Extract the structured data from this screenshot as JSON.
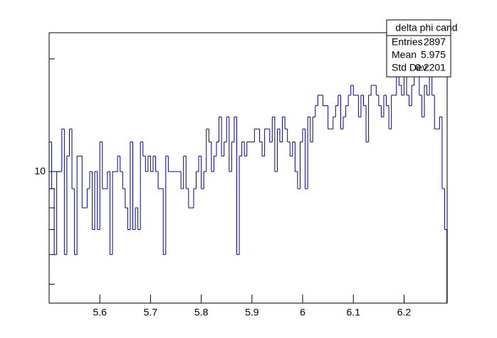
{
  "chart_data": {
    "type": "histogram",
    "bins": [
      5.5,
      5.505,
      5.51,
      5.515,
      5.52,
      5.525,
      5.53,
      5.535,
      5.54,
      5.545,
      5.55,
      5.555,
      5.56,
      5.565,
      5.57,
      5.575,
      5.58,
      5.585,
      5.59,
      5.595,
      5.6,
      5.605,
      5.61,
      5.615,
      5.62,
      5.625,
      5.63,
      5.635,
      5.64,
      5.645,
      5.65,
      5.655,
      5.66,
      5.665,
      5.67,
      5.675,
      5.68,
      5.685,
      5.69,
      5.695,
      5.7,
      5.705,
      5.71,
      5.715,
      5.72,
      5.725,
      5.73,
      5.735,
      5.74,
      5.745,
      5.75,
      5.755,
      5.76,
      5.765,
      5.77,
      5.775,
      5.78,
      5.785,
      5.79,
      5.795,
      5.8,
      5.805,
      5.81,
      5.815,
      5.82,
      5.825,
      5.83,
      5.835,
      5.84,
      5.845,
      5.85,
      5.855,
      5.86,
      5.865,
      5.87,
      5.875,
      5.88,
      5.885,
      5.89,
      5.895,
      5.9,
      5.905,
      5.91,
      5.915,
      5.92,
      5.925,
      5.93,
      5.935,
      5.94,
      5.945,
      5.95,
      5.955,
      5.96,
      5.965,
      5.97,
      5.975,
      5.98,
      5.985,
      5.99,
      5.995,
      6.0,
      6.005,
      6.01,
      6.015,
      6.02,
      6.025,
      6.03,
      6.035,
      6.04,
      6.045,
      6.05,
      6.055,
      6.06,
      6.065,
      6.07,
      6.075,
      6.08,
      6.085,
      6.09,
      6.095,
      6.1,
      6.105,
      6.11,
      6.115,
      6.12,
      6.125,
      6.13,
      6.135,
      6.14,
      6.145,
      6.15,
      6.155,
      6.16,
      6.165,
      6.17,
      6.175,
      6.18,
      6.185,
      6.19,
      6.195,
      6.2,
      6.205,
      6.21,
      6.215,
      6.22,
      6.225,
      6.23,
      6.235,
      6.24,
      6.245,
      6.25,
      6.255,
      6.26,
      6.265,
      6.27,
      6.275,
      6.28,
      6.285
    ],
    "values": [
      12,
      9,
      6,
      10,
      10,
      13,
      6,
      11,
      13,
      9,
      6,
      11,
      11,
      8,
      8,
      9,
      10,
      7,
      10,
      7,
      12,
      9,
      9,
      10,
      6,
      10,
      10,
      11,
      10,
      9,
      8,
      7,
      12,
      7,
      8,
      7,
      12,
      11,
      10,
      11,
      10,
      11,
      10,
      9,
      9,
      6,
      11,
      10,
      10,
      10,
      10,
      10,
      9,
      11,
      9,
      8,
      8,
      9,
      10,
      11,
      9,
      10,
      13,
      12,
      10,
      11,
      12,
      14,
      11,
      12,
      14,
      10,
      12,
      14,
      6,
      11,
      12,
      11,
      12,
      12,
      12,
      13,
      13,
      12,
      11,
      13,
      13,
      12,
      14,
      10,
      13,
      12,
      14,
      13,
      12,
      11,
      12,
      10,
      9,
      12,
      13,
      9,
      14,
      12,
      14,
      15,
      16,
      16,
      15,
      15,
      13,
      13,
      14,
      15,
      16,
      13,
      14,
      15,
      16,
      17,
      16,
      16,
      14,
      16,
      15,
      12,
      16,
      17,
      17,
      16,
      15,
      14,
      16,
      15,
      13,
      16,
      16,
      18,
      17,
      16,
      19,
      16,
      15,
      17,
      18,
      18,
      16,
      14,
      17,
      16,
      18,
      16,
      13,
      13,
      14,
      9,
      7
    ],
    "color": "#000099",
    "xlim": [
      5.5,
      6.285
    ],
    "xticks": [
      5.6,
      5.7,
      5.8,
      5.9,
      6,
      6.1,
      6.2
    ],
    "ylim": [
      4.45,
      23.5
    ],
    "yticks": [
      10
    ],
    "yminorticks": [
      5,
      6,
      7,
      8,
      9,
      20
    ],
    "log_y": true,
    "stats": {
      "title": "delta phi cand",
      "rows": [
        [
          "Entries",
          "2897"
        ],
        [
          "Mean",
          "5.975"
        ],
        [
          "Std Dev",
          "0.2201"
        ]
      ]
    }
  }
}
